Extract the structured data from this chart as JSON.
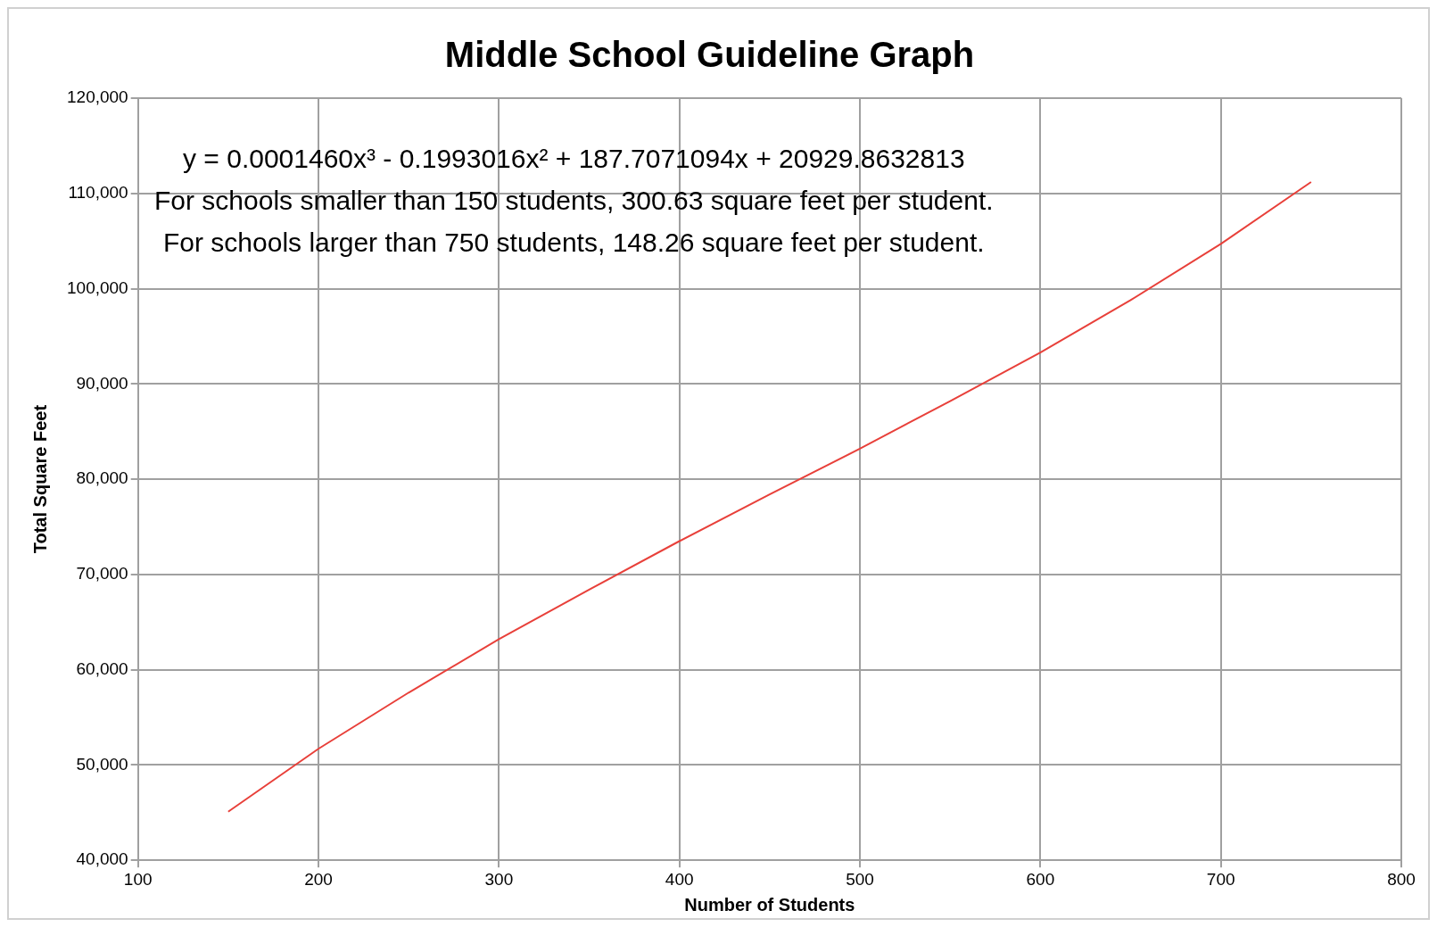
{
  "chart_data": {
    "type": "line",
    "title": "Middle School Guideline Graph",
    "xlabel": "Number of Students",
    "ylabel": "Total Square Feet",
    "annotations": [
      "y = 0.0001460x³ - 0.1993016x² + 187.7071094x + 20929.8632813",
      "For schools smaller than 150 students, 300.63 square feet per student.",
      "For schools larger than 750 students, 148.26 square feet per student."
    ],
    "x": [
      150,
      200,
      250,
      300,
      350,
      400,
      450,
      500,
      550,
      600,
      650,
      700,
      750
    ],
    "series": [
      {
        "color": "#e8403a",
        "values": [
          45100,
          51700,
          57600,
          63200,
          68400,
          73500,
          78400,
          83200,
          88200,
          93300,
          98800,
          104700,
          111200
        ]
      }
    ],
    "xlim": [
      100,
      800
    ],
    "xticks": [
      100,
      200,
      300,
      400,
      500,
      600,
      700,
      800
    ],
    "ylim": [
      40000,
      120000
    ],
    "yticks": [
      {
        "value": 40000,
        "label": "40,000"
      },
      {
        "value": 50000,
        "label": "50,000"
      },
      {
        "value": 60000,
        "label": "60,000"
      },
      {
        "value": 70000,
        "label": "70,000"
      },
      {
        "value": 80000,
        "label": "80,000"
      },
      {
        "value": 90000,
        "label": "90,000"
      },
      {
        "value": 100000,
        "label": "100,000"
      },
      {
        "value": 110000,
        "label": "110,000"
      },
      {
        "value": 120000,
        "label": "120,000"
      }
    ],
    "grid": true,
    "legend": false,
    "marker": "none",
    "line_style": "solid"
  }
}
